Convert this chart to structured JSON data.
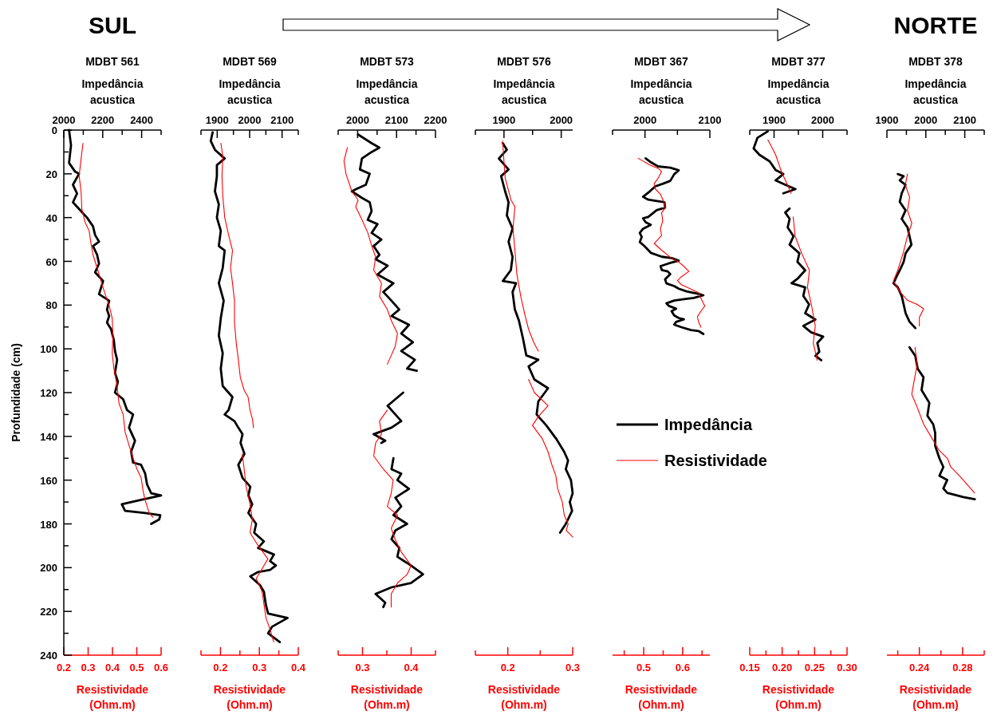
{
  "chart_data": [
    {
      "type": "line",
      "title": "MDBT 561",
      "annotations": [
        "SUL"
      ],
      "x2label": "Impedância acustica",
      "xlabel": "Resistividade (Ohm.m)",
      "ylabel": "Profundidade (cm)",
      "ylim": [
        240,
        0
      ],
      "yticks": [
        0,
        {
          "value": 10,
          "label": null
        },
        20,
        {
          "value": 30,
          "label": null
        },
        40,
        {
          "value": 50,
          "label": null
        },
        60,
        {
          "value": 70,
          "label": null
        },
        80,
        {
          "value": 90,
          "label": null
        },
        100,
        {
          "value": 110,
          "label": null
        },
        120,
        {
          "value": 130,
          "label": null
        },
        140,
        {
          "value": 150,
          "label": null
        },
        160,
        {
          "value": 170,
          "label": null
        },
        180,
        {
          "value": 190,
          "label": null
        },
        200,
        {
          "value": 210,
          "label": null
        },
        220,
        {
          "value": 230,
          "label": null
        },
        240
      ],
      "xlim": [
        0.2,
        0.6
      ],
      "xticks": [
        0.2,
        0.3,
        0.4,
        0.5,
        0.6
      ],
      "x2lim": [
        2000,
        2500
      ],
      "x2ticks": [
        2000,
        {
          "value": 2100,
          "label": null
        },
        2200,
        {
          "value": 2300,
          "label": null
        },
        2400,
        {
          "value": 2500,
          "label": null
        }
      ],
      "series": [
        {
          "color": "#000000",
          "axis": "x2",
          "x": [
            2027,
            2037,
            2027,
            2058,
            2078,
            2047,
            2068,
            2047,
            2078,
            2119,
            2150,
            2161,
            2181,
            2150,
            2171,
            2181,
            2161,
            2202,
            2181,
            2233,
            2222,
            2233,
            2222,
            2243,
            2257,
            2263,
            2274,
            2263,
            2278,
            2263,
            2305,
            2325,
            2356,
            2335,
            2366,
            2346,
            2356,
            2397,
            2418,
            2428,
            2449,
            2500,
            2397,
            2298,
            2315,
            2418,
            2496,
            2490,
            2449
          ],
          "values": [
            0,
            7,
            15,
            19,
            20,
            25,
            29,
            33,
            36,
            40,
            44,
            48,
            51,
            53,
            57,
            61,
            65,
            69,
            75,
            78,
            82,
            85,
            88,
            91,
            96,
            101,
            105,
            111,
            115,
            120,
            123,
            128,
            130,
            136,
            142,
            147,
            152,
            153,
            157,
            162,
            166,
            167,
            169,
            171,
            174,
            175,
            176,
            178,
            180
          ]
        },
        {
          "color": "#ff0000",
          "x": [
            0.279,
            0.271,
            0.263,
            0.271,
            0.274,
            0.287,
            0.304,
            0.312,
            0.32,
            0.337,
            0.353,
            0.37,
            0.386,
            0.399,
            0.402,
            0.399,
            0.406,
            0.419,
            0.427,
            0.444,
            0.452,
            0.468,
            0.485,
            0.501,
            0.518,
            0.526,
            0.534,
            0.551,
            0.567
          ],
          "values": [
            6,
            13,
            21,
            28,
            36,
            42,
            46,
            52,
            57,
            63,
            69,
            75,
            80,
            86,
            94,
            102,
            109,
            117,
            125,
            130,
            138,
            144,
            150,
            155,
            159,
            165,
            169,
            175,
            177
          ]
        }
      ]
    },
    {
      "type": "line",
      "title": "MDBT 569",
      "x2label": "Impedância acustica",
      "xlabel": "Resistividade (Ohm.m)",
      "tick_labels": "x",
      "ylim": [
        240,
        0
      ],
      "xlim": [
        0.15,
        0.4
      ],
      "xticks": [
        {
          "value": 0.15,
          "label": null
        },
        0.2,
        {
          "value": 0.25,
          "label": null
        },
        0.3,
        {
          "value": 0.35,
          "label": null
        },
        0.4
      ],
      "x2lim": [
        1850,
        2150
      ],
      "x2ticks": [
        {
          "value": 1850,
          "label": null
        },
        1900,
        {
          "value": 1950,
          "label": null
        },
        2000,
        {
          "value": 2050,
          "label": null
        },
        2100,
        {
          "value": 2150,
          "label": null
        }
      ],
      "series": [
        {
          "color": "#000000",
          "axis": "x2",
          "x": [
            1886,
            1880,
            1893,
            1923,
            1899,
            1899,
            1893,
            1905,
            1899,
            1911,
            1905,
            1923,
            1917,
            1905,
            1920,
            1911,
            1905,
            1917,
            1911,
            1917,
            1947,
            1935,
            1923,
            1953,
            1965,
            1978,
            1972,
            1984,
            1965,
            1978,
            2002,
            1996,
            2008,
            1996,
            2020,
            2014,
            2044,
            2026,
            2075,
            2063,
            2081,
            2063,
            2026,
            2002,
            2032,
            2044,
            2050,
            2057,
            2117,
            2069,
            2057,
            2075,
            2093
          ],
          "values": [
            1,
            5,
            9,
            13,
            16,
            21,
            28,
            34,
            40,
            46,
            53,
            55,
            63,
            70,
            78,
            86,
            94,
            102,
            109,
            117,
            122,
            128,
            130,
            133,
            136,
            139,
            143,
            148,
            153,
            159,
            163,
            167,
            171,
            175,
            180,
            184,
            188,
            191,
            194,
            197,
            199,
            201,
            202,
            204,
            208,
            211,
            217,
            221,
            223,
            227,
            230,
            232,
            234
          ]
        },
        {
          "color": "#ff0000",
          "x": [
            0.201,
            0.206,
            0.204,
            0.206,
            0.211,
            0.221,
            0.231,
            0.226,
            0.231,
            0.236,
            0.236,
            0.241,
            0.246,
            0.251,
            0.261,
            0.271,
            0.276,
            0.282,
            0.285,
            null,
            0.256,
            0.261,
            0.266,
            0.276,
            0.282,
            0.276,
            0.297,
            0.322,
            0.302,
            0.292,
            0.307,
            0.312,
            0.317,
            0.327,
            0.337
          ],
          "values": [
            6,
            12,
            21,
            30,
            40,
            48,
            55,
            63,
            70,
            78,
            88,
            98,
            105,
            113,
            119,
            122,
            128,
            132,
            136,
            null,
            148,
            155,
            163,
            171,
            178,
            184,
            190,
            196,
            202,
            205,
            211,
            217,
            223,
            228,
            234
          ]
        }
      ]
    },
    {
      "type": "line",
      "title": "MDBT 573",
      "x2label": "Impedância acustica",
      "xlabel": "Resistividade (Ohm.m)",
      "tick_labels": "x",
      "ylim": [
        240,
        0
      ],
      "xlim": [
        0.25,
        0.45
      ],
      "xticks": [
        {
          "value": 0.25,
          "label": null
        },
        0.3,
        {
          "value": 0.35,
          "label": null
        },
        0.4,
        {
          "value": 0.45,
          "label": null
        }
      ],
      "x2lim": [
        1950,
        2200
      ],
      "x2ticks": [
        {
          "value": 1950,
          "label": null
        },
        2000,
        {
          "value": 2050,
          "label": null
        },
        2100,
        {
          "value": 2150,
          "label": null
        },
        2200
      ],
      "series": [
        {
          "color": "#000000",
          "axis": "x2",
          "x": [
            2001,
            2036,
            2056,
            2036,
            2011,
            2006,
            2031,
            2021,
            1996,
            1985,
            2011,
            2031,
            2036,
            2026,
            2051,
            2036,
            2061,
            2041,
            2056,
            2046,
            2077,
            2051,
            2092,
            2066,
            2087,
            2107,
            2087,
            2132,
            2112,
            2142,
            2112,
            2147,
            2127,
            2152,
            null,
            2117,
            2077,
            2097,
            2112,
            2087,
            2041,
            2071,
            2061,
            null,
            2092,
            2087,
            2112,
            2102,
            2132,
            2097,
            2112,
            2092,
            2127,
            2097,
            2087,
            2107,
            2102,
            2137,
            2168,
            2137,
            2087,
            2046,
            2071,
            2066
          ],
          "values": [
            2,
            6,
            8,
            10,
            13,
            18,
            20,
            25,
            27,
            28,
            31,
            33,
            37,
            41,
            43,
            47,
            50,
            53,
            57,
            59,
            62,
            66,
            70,
            74,
            78,
            82,
            85,
            89,
            93,
            97,
            101,
            105,
            109,
            110,
            null,
            120,
            126,
            130,
            133,
            136,
            139,
            142,
            143,
            null,
            150,
            155,
            157,
            160,
            164,
            168,
            172,
            176,
            180,
            183,
            187,
            191,
            195,
            199,
            203,
            207,
            209,
            212,
            216,
            218
          ]
        },
        {
          "color": "#ff0000",
          "x": [
            0.269,
            0.262,
            0.266,
            0.278,
            0.291,
            0.286,
            0.299,
            0.311,
            0.319,
            0.327,
            0.323,
            0.339,
            0.335,
            0.351,
            0.359,
            0.372,
            0.367,
            0.359,
            0.351,
            null,
            0.351,
            0.335,
            0.339,
            0.327,
            0.323,
            0.343,
            0.363,
            0.359,
            0.351,
            0.372,
            0.359,
            0.367,
            0.38,
            0.4,
            0.392,
            0.372,
            0.359,
            0.359
          ],
          "values": [
            8,
            14,
            20,
            28,
            32,
            35,
            41,
            47,
            53,
            58,
            64,
            70,
            76,
            82,
            87,
            93,
            99,
            103,
            107,
            null,
            128,
            133,
            139,
            143,
            149,
            155,
            160,
            166,
            172,
            176,
            182,
            187,
            193,
            199,
            203,
            207,
            212,
            218
          ]
        }
      ]
    },
    {
      "type": "line",
      "title": "MDBT 576",
      "x2label": "Impedância acustica",
      "xlabel": "Resistividade (Ohm.m)",
      "tick_labels": "x",
      "ylim": [
        240,
        0
      ],
      "xlim": [
        0.15,
        0.3
      ],
      "xticks": [
        {
          "value": 0.15,
          "label": null
        },
        0.2,
        {
          "value": 0.25,
          "label": null
        },
        0.3
      ],
      "x2lim": [
        1850,
        2020
      ],
      "x2ticks": [
        {
          "value": 1850,
          "label": null
        },
        1900,
        {
          "value": 1950,
          "label": null
        },
        2000
      ],
      "series": [
        {
          "color": "#000000",
          "axis": "x2",
          "x": [
            1898,
            1905,
            1891,
            1908,
            1895,
            1902,
            1908,
            1905,
            1915,
            1908,
            1915,
            1912,
            1898,
            1921,
            1915,
            1919,
            1926,
            1933,
            1939,
            1960,
            1943,
            1953,
            1977,
            1960,
            1957,
            1974,
            1991,
            2005,
            2012,
            2008,
            2017,
            2020,
            2015,
            2019,
            2008,
            1998
          ],
          "values": [
            6,
            9,
            13,
            18,
            21,
            28,
            33,
            39,
            45,
            51,
            58,
            64,
            69,
            70,
            74,
            82,
            87,
            95,
            103,
            105,
            108,
            114,
            118,
            124,
            130,
            135,
            141,
            147,
            151,
            155,
            160,
            166,
            170,
            174,
            180,
            184
          ]
        },
        {
          "color": "#ff0000",
          "x": [
            0.192,
            0.194,
            0.196,
            0.205,
            0.211,
            0.208,
            0.211,
            0.214,
            0.22,
            0.226,
            0.232,
            0.24,
            0.247,
            null,
            0.232,
            0.241,
            0.262,
            0.247,
            0.238,
            0.253,
            0.262,
            0.268,
            0.274,
            0.277,
            0.284,
            0.287,
            0.293,
            0.29,
            0.3
          ],
          "values": [
            5,
            14,
            22,
            32,
            35,
            45,
            55,
            66,
            76,
            84,
            91,
            97,
            101,
            null,
            114,
            120,
            126,
            131,
            135,
            141,
            147,
            153,
            158,
            164,
            170,
            176,
            180,
            183,
            186
          ]
        }
      ]
    },
    {
      "type": "line",
      "title": "MDBT 367",
      "x2label": "Impedância acustica",
      "xlabel": "Resistividade (Ohm.m)",
      "tick_labels": "x",
      "legend": "right",
      "ylim": [
        240,
        0
      ],
      "xlim": [
        0.42,
        0.67
      ],
      "xticks": [
        {
          "value": 0.45,
          "label": null
        },
        0.5,
        {
          "value": 0.55,
          "label": null
        },
        0.6,
        {
          "value": 0.65,
          "label": null
        }
      ],
      "x2lim": [
        1950,
        2100
      ],
      "x2ticks": [
        {
          "value": 1950,
          "label": null
        },
        2000,
        {
          "value": 2050,
          "label": null
        },
        2100
      ],
      "series": [
        {
          "name": "Impedância",
          "color": "#000000",
          "axis": "x2",
          "x": [
            2001,
            2009,
            2020,
            2039,
            2052,
            2045,
            2039,
            2028,
            2016,
            2007,
            1997,
            2005,
            2018,
            2030,
            2031,
            2018,
            2005,
            1997,
            2001,
            2009,
            1997,
            1992,
            1995,
            1992,
            1999,
            2009,
            2026,
            2041,
            2052,
            2037,
            2024,
            2026,
            2035,
            2039,
            2031,
            2033,
            2045,
            2052,
            2064,
            2083,
            2090,
            2075,
            2060,
            2045,
            2033,
            2037,
            2048,
            2041,
            2045,
            2052,
            2060,
            2048,
            2045,
            2056,
            2071,
            2083,
            2090
          ],
          "values": [
            12.9,
            14.7,
            16.6,
            17.2,
            18.4,
            20.2,
            23.2,
            24.5,
            25.7,
            28.1,
            30.5,
            31.8,
            32.4,
            33.0,
            35.4,
            36.6,
            39.7,
            40.3,
            42.1,
            43.3,
            45.1,
            47.0,
            48.8,
            51.2,
            53.0,
            56.1,
            57.9,
            58.5,
            59.7,
            60.9,
            62.2,
            64.0,
            64.6,
            65.8,
            68.2,
            70.1,
            71.3,
            72.5,
            73.7,
            74.9,
            75.5,
            76.7,
            77.3,
            77.9,
            79.2,
            80.4,
            81.6,
            82.8,
            84.7,
            85.9,
            86.5,
            87.7,
            88.9,
            90.1,
            91.4,
            91.9,
            93.2
          ]
        },
        {
          "name": "Resistividade",
          "color": "#ff0000",
          "x": [
            0.486,
            0.515,
            0.54,
            0.546,
            0.537,
            0.527,
            0.53,
            0.543,
            0.552,
            0.556,
            0.546,
            0.549,
            0.543,
            0.546,
            0.527,
            0.546,
            0.571,
            0.59,
            0.603,
            0.616,
            0.597,
            0.587,
            0.597,
            0.619,
            0.641,
            0.65,
            0.657,
            0.647,
            0.638,
            0.641,
            0.647
          ],
          "values": [
            12.9,
            15.9,
            17.8,
            19.0,
            22.0,
            24.5,
            26.9,
            29.3,
            33.0,
            35.4,
            37.8,
            41.5,
            45.1,
            48.2,
            51.8,
            54.9,
            58.5,
            60.3,
            62.2,
            64.6,
            67.0,
            68.8,
            70.7,
            72.5,
            74.3,
            78.0,
            80.4,
            82.8,
            85.3,
            87.7,
            90.1
          ]
        }
      ]
    },
    {
      "type": "line",
      "title": "MDBT 377",
      "x2label": "Impedância acustica",
      "xlabel": "Resistividade (Ohm.m)",
      "tick_labels": "x",
      "ylim": [
        240,
        0
      ],
      "xlim": [
        0.15,
        0.3
      ],
      "xticks": [
        0.15,
        {
          "value": 0.175,
          "label": null
        },
        {
          "value": 0.2,
          "label": "0.20"
        },
        {
          "value": 0.225,
          "label": null
        },
        0.25,
        {
          "value": 0.275,
          "label": null
        },
        {
          "value": 0.3,
          "label": "0.30"
        }
      ],
      "x2lim": [
        1850,
        2050
      ],
      "x2ticks": [
        {
          "value": 1850,
          "label": null
        },
        1900,
        {
          "value": 1950,
          "label": null
        },
        2000,
        {
          "value": 2050,
          "label": null
        }
      ],
      "series": [
        {
          "color": "#000000",
          "axis": "x2",
          "x": [
            1887,
            1866,
            1858,
            1870,
            1891,
            1903,
            1919,
            1903,
            1923,
            1944,
            1919,
            null,
            1932,
            1923,
            1932,
            1928,
            1940,
            1932,
            1952,
            1948,
            1964,
            1948,
            1936,
            1964,
            1960,
            1972,
            1964,
            1985,
            1960,
            1976,
            2001,
            1989,
            1993,
            1985,
            1997
          ],
          "values": [
            0.6,
            3.5,
            8.4,
            11.3,
            14.3,
            18.2,
            20.1,
            23.0,
            25.0,
            27.0,
            28.9,
            null,
            35.8,
            37.7,
            40.6,
            44.5,
            48.5,
            52.4,
            56.3,
            60.2,
            64.1,
            68.0,
            70.0,
            71.9,
            75.8,
            79.7,
            83.7,
            86.6,
            89.5,
            92.4,
            94.4,
            97.3,
            101.3,
            103.2,
            105.2
          ]
        },
        {
          "color": "#ff0000",
          "x": [
            0.178,
            0.19,
            0.199,
            0.205,
            0.214,
            null,
            0.217,
            0.22,
            0.23,
            0.242,
            0.239,
            0.245,
            0.251,
            0.248,
            0.254
          ],
          "values": [
            4.5,
            11.3,
            19.1,
            23.0,
            28.9,
            null,
            39.7,
            48.5,
            56.3,
            64.1,
            71.9,
            79.7,
            89.5,
            97.3,
            105.2
          ]
        }
      ]
    },
    {
      "type": "line",
      "title": "MDBT 378",
      "annotations": [
        "NORTE"
      ],
      "x2label": "Impedância acustica",
      "xlabel": "Resistividade (Ohm.m)",
      "tick_labels": "x",
      "ylim": [
        240,
        0
      ],
      "xlim": [
        0.21,
        0.3
      ],
      "xticks": [
        {
          "value": 0.22,
          "label": null
        },
        0.24,
        {
          "value": 0.26,
          "label": null
        },
        0.28,
        {
          "value": 0.3,
          "label": null
        }
      ],
      "x2lim": [
        1900,
        2150
      ],
      "x2ticks": [
        1900,
        {
          "value": 1950,
          "label": null
        },
        2000,
        {
          "value": 2050,
          "label": null
        },
        2100,
        {
          "value": 2150,
          "label": null
        }
      ],
      "series": [
        {
          "color": "#000000",
          "axis": "x2",
          "x": [
            1928,
            1943,
            1933,
            1948,
            1938,
            1933,
            1948,
            1938,
            1953,
            1958,
            1963,
            1948,
            1943,
            1933,
            1922,
            1917,
            1928,
            1938,
            1943,
            1948,
            1958,
            1973,
            null,
            1958,
            1973,
            1979,
            1994,
            1989,
            2009,
            2004,
            2019,
            2024,
            2024,
            2035,
            2045,
            2035,
            2055,
            2045,
            2055,
            2096,
            2126
          ],
          "values": [
            20.1,
            21.1,
            23.0,
            25.0,
            28.9,
            32.8,
            36.7,
            40.6,
            44.5,
            48.5,
            52.4,
            56.3,
            60.2,
            64.1,
            68.0,
            70.0,
            71.9,
            75.8,
            79.7,
            83.7,
            87.6,
            90.5,
            null,
            99.3,
            103.2,
            109.1,
            113.0,
            118.8,
            124.7,
            130.6,
            134.5,
            138.4,
            144.3,
            150.1,
            154.0,
            158.0,
            159.9,
            163.8,
            165.8,
            167.7,
            168.7
          ]
        },
        {
          "color": "#ff0000",
          "x": [
            0.229,
            0.227,
            0.231,
            0.229,
            0.233,
            0.229,
            0.225,
            0.22,
            0.216,
            0.222,
            0.229,
            0.238,
            0.244,
            0.24,
            0.24,
            null,
            0.236,
            0.238,
            0.235,
            0.233,
            0.238,
            0.244,
            0.251,
            0.258,
            0.266,
            0.269,
            0.277,
            0.284,
            0.291
          ],
          "values": [
            20.1,
            25.0,
            30.8,
            36.7,
            42.6,
            48.5,
            56.3,
            64.1,
            69.0,
            73.9,
            77.8,
            79.7,
            81.7,
            85.6,
            89.5,
            null,
            99.3,
            107.1,
            115.0,
            120.8,
            126.7,
            134.5,
            140.3,
            146.2,
            150.1,
            154.0,
            158.0,
            161.9,
            165.8
          ]
        }
      ]
    }
  ]
}
